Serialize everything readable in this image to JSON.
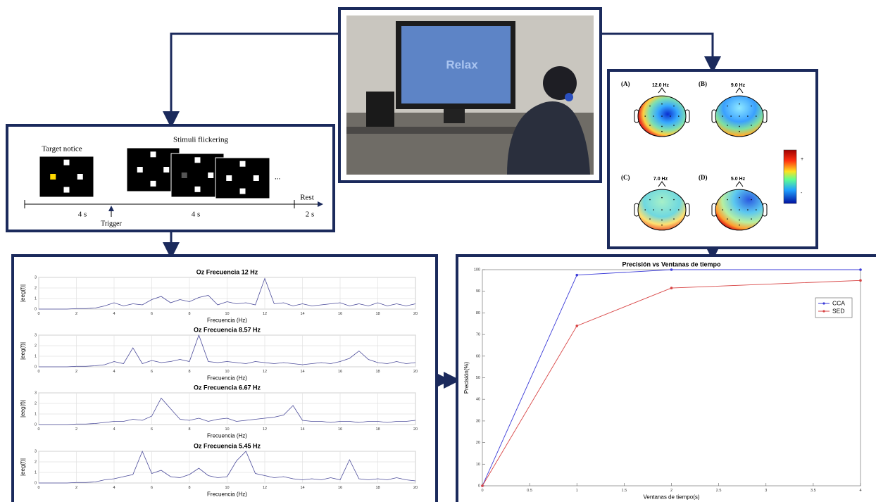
{
  "stimulus_panel": {
    "target_label": "Target notice",
    "flicker_label": "Stimuli flickering",
    "ellipsis": "...",
    "trigger": "Trigger",
    "rest": "Rest",
    "durations": [
      "4 s",
      "4 s",
      "2 s"
    ]
  },
  "photo": {
    "text": "Relax"
  },
  "topomaps": {
    "maps": [
      {
        "label": "(A)",
        "title": "12.0 Hz"
      },
      {
        "label": "(B)",
        "title": "9.0 Hz"
      },
      {
        "label": "(C)",
        "title": "7.0 Hz"
      },
      {
        "label": "(D)",
        "title": "5.0 Hz"
      }
    ],
    "colorbar_max": "+",
    "colorbar_min": "-"
  },
  "chart_data": [
    {
      "type": "line",
      "title": "Oz Frecuencia 12 Hz",
      "xlabel": "Frecuencia (Hz)",
      "ylabel": "|eeg(f)|",
      "color": "#4b4b9a",
      "grid": true,
      "xlim": [
        0,
        20
      ],
      "xticks": [
        0,
        2,
        4,
        6,
        8,
        10,
        12,
        14,
        16,
        18,
        20
      ],
      "ylim": [
        0,
        3
      ],
      "yticks": [
        0,
        1,
        2,
        3
      ],
      "x": [
        0,
        0.5,
        1,
        1.5,
        2,
        2.5,
        3,
        3.5,
        4,
        4.5,
        5,
        5.5,
        6,
        6.5,
        7,
        7.5,
        8,
        8.5,
        9,
        9.5,
        10,
        10.5,
        11,
        11.5,
        12,
        12.5,
        13,
        13.5,
        14,
        14.5,
        15,
        15.5,
        16,
        16.5,
        17,
        17.5,
        18,
        18.5,
        19,
        19.5,
        20
      ],
      "values": [
        0,
        0,
        0,
        0,
        0.05,
        0.05,
        0.1,
        0.3,
        0.6,
        0.3,
        0.5,
        0.4,
        0.9,
        1.2,
        0.6,
        0.9,
        0.7,
        1.1,
        1.3,
        0.4,
        0.7,
        0.5,
        0.6,
        0.4,
        2.9,
        0.5,
        0.6,
        0.3,
        0.5,
        0.3,
        0.4,
        0.5,
        0.6,
        0.3,
        0.5,
        0.3,
        0.6,
        0.3,
        0.5,
        0.3,
        0.5
      ]
    },
    {
      "type": "line",
      "title": "Oz Frecuencia 8.57 Hz",
      "xlabel": "Frecuencia (Hz)",
      "ylabel": "|eeg(f)|",
      "color": "#4b4b9a",
      "grid": true,
      "xlim": [
        0,
        20
      ],
      "xticks": [
        0,
        2,
        4,
        6,
        8,
        10,
        12,
        14,
        16,
        18,
        20
      ],
      "ylim": [
        0,
        3
      ],
      "yticks": [
        0,
        1,
        2,
        3
      ],
      "x": [
        0,
        0.5,
        1,
        1.5,
        2,
        2.5,
        3,
        3.5,
        4,
        4.5,
        5,
        5.5,
        6,
        6.5,
        7,
        7.5,
        8,
        8.5,
        9,
        9.5,
        10,
        10.5,
        11,
        11.5,
        12,
        12.5,
        13,
        13.5,
        14,
        14.5,
        15,
        15.5,
        16,
        16.5,
        17,
        17.5,
        18,
        18.5,
        19,
        19.5,
        20
      ],
      "values": [
        0,
        0,
        0,
        0,
        0.05,
        0.05,
        0.1,
        0.2,
        0.5,
        0.3,
        1.8,
        0.3,
        0.6,
        0.4,
        0.5,
        0.7,
        0.5,
        3,
        0.5,
        0.4,
        0.5,
        0.4,
        0.3,
        0.5,
        0.4,
        0.3,
        0.4,
        0.3,
        0.2,
        0.3,
        0.4,
        0.3,
        0.5,
        0.8,
        1.5,
        0.7,
        0.4,
        0.3,
        0.5,
        0.3,
        0.4
      ]
    },
    {
      "type": "line",
      "title": "Oz Frecuencia 6.67 Hz",
      "xlabel": "Frecuencia (Hz)",
      "ylabel": "|eeg(f)|",
      "color": "#4b4b9a",
      "grid": true,
      "xlim": [
        0,
        20
      ],
      "xticks": [
        0,
        2,
        4,
        6,
        8,
        10,
        12,
        14,
        16,
        18,
        20
      ],
      "ylim": [
        0,
        3
      ],
      "yticks": [
        0,
        1,
        2,
        3
      ],
      "x": [
        0,
        0.5,
        1,
        1.5,
        2,
        2.5,
        3,
        3.5,
        4,
        4.5,
        5,
        5.5,
        6,
        6.5,
        7,
        7.5,
        8,
        8.5,
        9,
        9.5,
        10,
        10.5,
        11,
        11.5,
        12,
        12.5,
        13,
        13.5,
        14,
        14.5,
        15,
        15.5,
        16,
        16.5,
        17,
        17.5,
        18,
        18.5,
        19,
        19.5,
        20
      ],
      "values": [
        0,
        0,
        0,
        0,
        0.05,
        0.05,
        0.1,
        0.2,
        0.3,
        0.3,
        0.5,
        0.4,
        0.8,
        2.5,
        1.5,
        0.5,
        0.4,
        0.6,
        0.3,
        0.5,
        0.6,
        0.3,
        0.4,
        0.5,
        0.6,
        0.7,
        0.9,
        1.8,
        0.4,
        0.3,
        0.3,
        0.2,
        0.3,
        0.3,
        0.2,
        0.3,
        0.3,
        0.2,
        0.3,
        0.3,
        0.4
      ]
    },
    {
      "type": "line",
      "title": "Oz Frecuencia 5.45 Hz",
      "xlabel": "Frecuencia (Hz)",
      "ylabel": "|eeg(f)|",
      "color": "#4b4b9a",
      "grid": true,
      "xlim": [
        0,
        20
      ],
      "xticks": [
        0,
        2,
        4,
        6,
        8,
        10,
        12,
        14,
        16,
        18,
        20
      ],
      "ylim": [
        0,
        3
      ],
      "yticks": [
        0,
        1,
        2,
        3
      ],
      "x": [
        0,
        0.5,
        1,
        1.5,
        2,
        2.5,
        3,
        3.5,
        4,
        4.5,
        5,
        5.5,
        6,
        6.5,
        7,
        7.5,
        8,
        8.5,
        9,
        9.5,
        10,
        10.5,
        11,
        11.5,
        12,
        12.5,
        13,
        13.5,
        14,
        14.5,
        15,
        15.5,
        16,
        16.5,
        17,
        17.5,
        18,
        18.5,
        19,
        19.5,
        20
      ],
      "values": [
        0,
        0,
        0,
        0,
        0.05,
        0.05,
        0.1,
        0.3,
        0.4,
        0.6,
        0.8,
        3,
        0.9,
        1.2,
        0.6,
        0.5,
        0.8,
        1.4,
        0.7,
        0.5,
        0.6,
        2.1,
        3,
        0.9,
        0.7,
        0.5,
        0.6,
        0.4,
        0.3,
        0.4,
        0.3,
        0.5,
        0.3,
        2.2,
        0.4,
        0.3,
        0.4,
        0.3,
        0.5,
        0.3,
        0.2
      ]
    },
    {
      "type": "line",
      "title": "Precisión vs Ventanas de tiempo",
      "xlabel": "Ventanas de tiempo(s)",
      "ylabel": "Precisión(%)",
      "grid": false,
      "legend": "upper right",
      "xlim": [
        0,
        4
      ],
      "xticks": [
        0,
        0.5,
        1,
        1.5,
        2,
        2.5,
        3,
        3.5,
        4
      ],
      "ylim": [
        0,
        100
      ],
      "yticks": [
        0,
        10,
        20,
        30,
        40,
        50,
        60,
        70,
        80,
        90,
        100
      ],
      "x": [
        0,
        1,
        2,
        4
      ],
      "series": [
        {
          "name": "CCA",
          "color": "#3b3bd8",
          "values": [
            0,
            97.5,
            100,
            100
          ]
        },
        {
          "name": "SED",
          "color": "#d84444",
          "values": [
            0,
            74,
            91.5,
            95
          ]
        }
      ]
    }
  ]
}
